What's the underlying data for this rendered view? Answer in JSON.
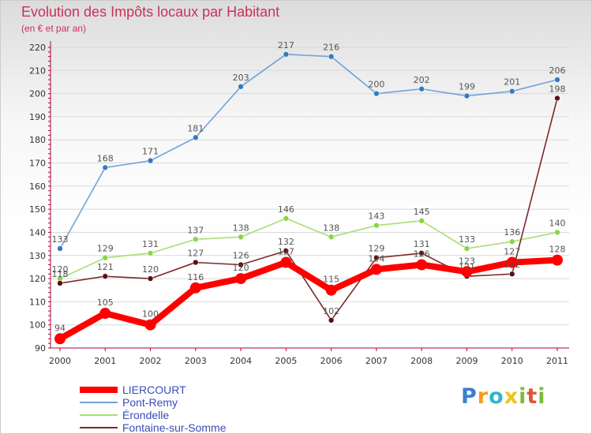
{
  "header": {
    "title": "Evolution des Impôts locaux par Habitant",
    "subtitle": "(en € et par an)"
  },
  "colors": {
    "title": "#c8325a",
    "axis": "#b0003a",
    "grid": "#d9d9d9",
    "legend_text": "#3a4db8",
    "value_label": "#555555"
  },
  "chart_data": {
    "type": "line",
    "title": "Evolution des Impôts locaux par Habitant",
    "subtitle": "(en € et par an)",
    "xlabel": "",
    "ylabel": "",
    "categories": [
      "2000",
      "2001",
      "2002",
      "2003",
      "2004",
      "2005",
      "2006",
      "2007",
      "2008",
      "2009",
      "2010",
      "2011"
    ],
    "ylim": [
      90,
      220
    ],
    "yticks": [
      90,
      100,
      110,
      120,
      130,
      140,
      150,
      160,
      170,
      180,
      190,
      200,
      210,
      220
    ],
    "grid": "horizontal",
    "legend_position": "bottom-left",
    "series": [
      {
        "name": "Pont-Remy",
        "color": "#6fa3d8",
        "marker_color": "#2f7bc6",
        "values": [
          133,
          168,
          171,
          181,
          203,
          217,
          216,
          200,
          202,
          199,
          201,
          206
        ]
      },
      {
        "name": "Érondelle",
        "color": "#a8de74",
        "marker_color": "#8ed14a",
        "values": [
          120,
          129,
          131,
          137,
          138,
          146,
          138,
          143,
          145,
          133,
          136,
          140
        ]
      },
      {
        "name": "Fontaine-sur-Somme",
        "color": "#7a2a2a",
        "marker_color": "#5a1010",
        "values": [
          118,
          121,
          120,
          127,
          126,
          132,
          102,
          129,
          131,
          121,
          122,
          198
        ]
      },
      {
        "name": "LIERCOURT",
        "color": "#ff0000",
        "marker_color": "#ff0000",
        "values": [
          94,
          105,
          100,
          116,
          120,
          127,
          115,
          124,
          126,
          123,
          127,
          128
        ]
      }
    ]
  },
  "legend": {
    "items": [
      "LIERCOURT",
      "Pont-Remy",
      "Érondelle",
      "Fontaine-sur-Somme"
    ]
  },
  "brand": {
    "letters": [
      "P",
      "r",
      "o",
      "x",
      "i",
      "t",
      "i"
    ],
    "colors": [
      "#3a7fd5",
      "#f39a1c",
      "#2fb7c9",
      "#f3c21c",
      "#7dbb3a",
      "#e0533a",
      "#7dbb3a"
    ]
  }
}
